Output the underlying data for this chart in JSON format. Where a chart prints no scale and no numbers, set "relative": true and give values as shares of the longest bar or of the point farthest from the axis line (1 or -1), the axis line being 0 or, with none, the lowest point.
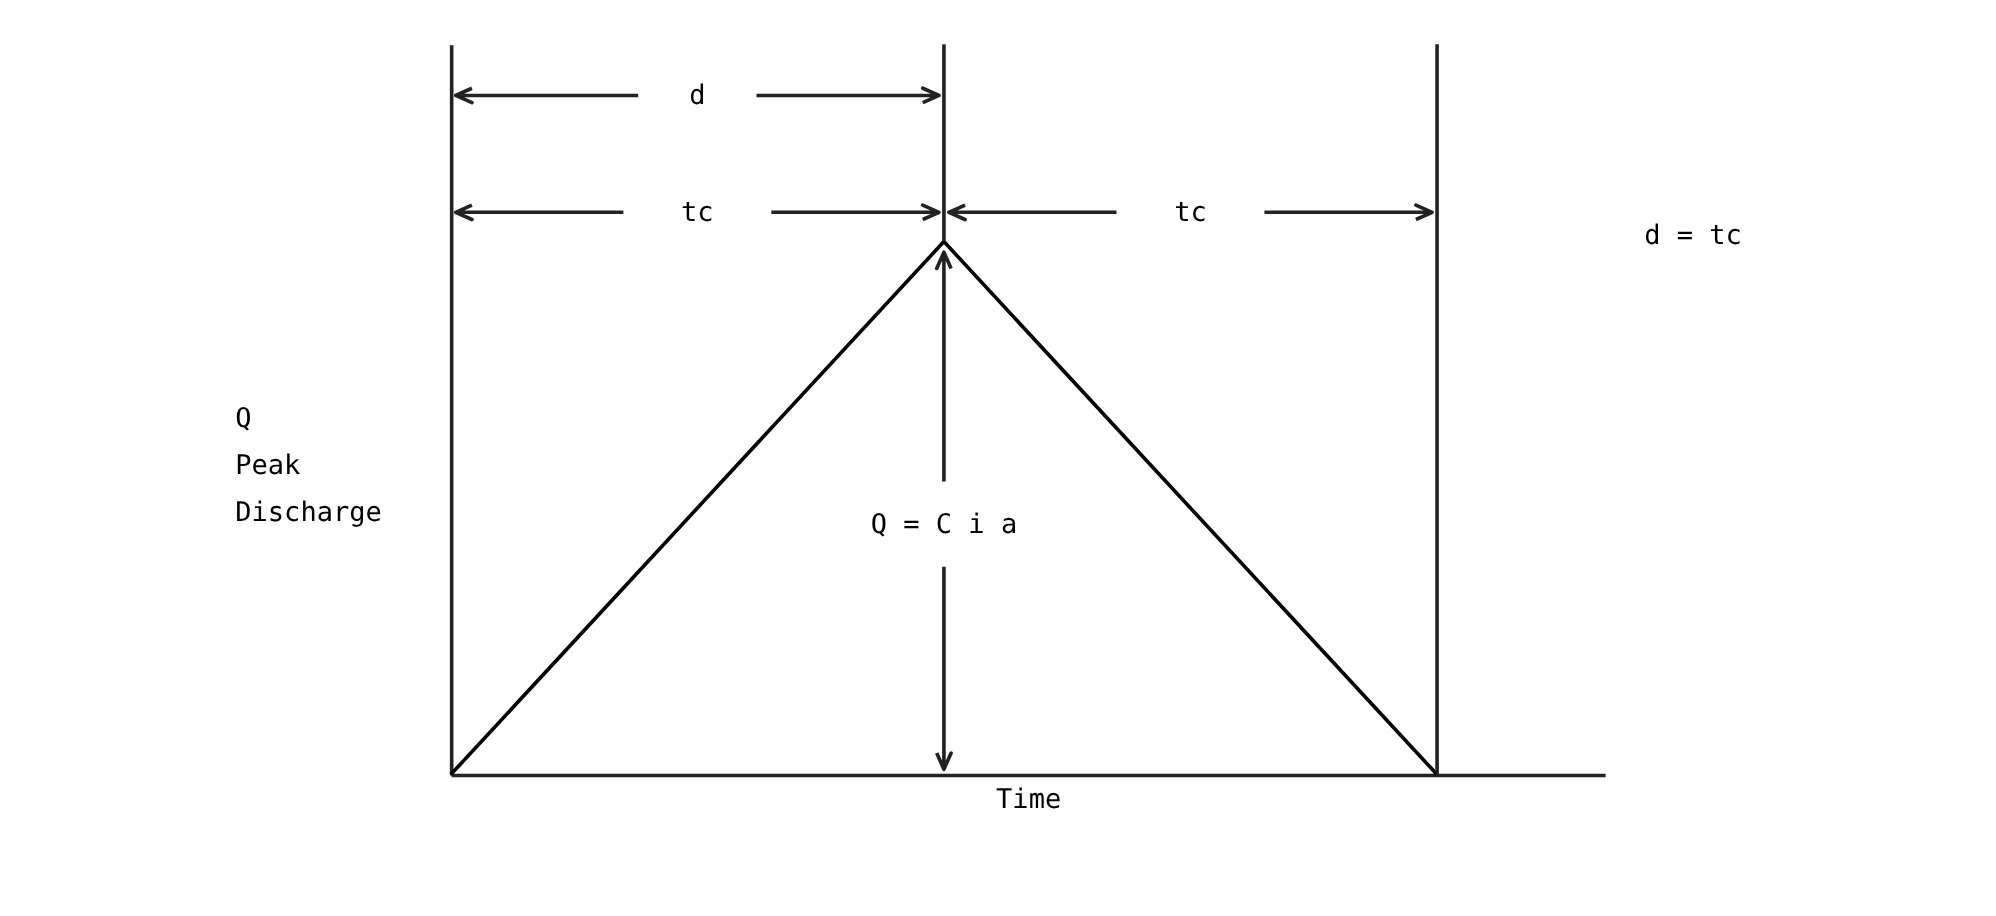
{
  "chart_data": {
    "type": "line",
    "relative": true,
    "xlabel": "Time",
    "ylabel": "Q Peak Discharge",
    "categories": [
      null,
      null,
      null
    ],
    "values": [
      0,
      1,
      0
    ],
    "color": "#000000",
    "annotations": [
      "d",
      "tc",
      "tc",
      "Q = C i a",
      "d = tc"
    ]
  }
}
